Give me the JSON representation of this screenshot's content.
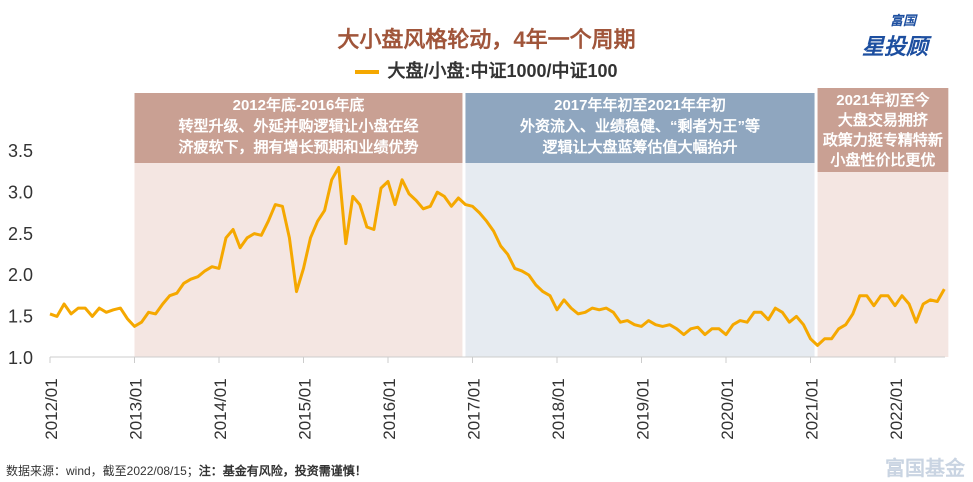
{
  "title": "大小盘风格轮动，4年一个周期",
  "logo": {
    "top": "富国",
    "bottom": "星投顾"
  },
  "watermark": "富国基金",
  "footer": {
    "source": "数据来源：wind，截至2022/08/15；",
    "note": "注：基金有风险，投资需谨慎！"
  },
  "colors": {
    "line": "#f5a800",
    "pink_band": "#c9a093",
    "blue_band": "#8fa6bf",
    "title": "#a0553a"
  },
  "chart_data": {
    "type": "line",
    "title": "大小盘风格轮动，4年一个周期",
    "ylim": [
      1.0,
      3.5
    ],
    "yticks": [
      "1.0",
      "1.5",
      "2.0",
      "2.5",
      "3.0",
      "3.5"
    ],
    "xticks": [
      "2012/01",
      "2013/01",
      "2014/01",
      "2015/01",
      "2016/01",
      "2017/01",
      "2018/01",
      "2019/01",
      "2020/01",
      "2021/01",
      "2022/01"
    ],
    "series": [
      {
        "name": "大盘/小盘:中证1000/中证100",
        "start": "2012/01",
        "frequency": "monthly",
        "values": [
          1.55,
          1.45,
          1.6,
          1.55,
          1.55,
          1.55,
          1.52,
          1.55,
          1.5,
          1.6,
          1.55,
          1.42,
          1.4,
          1.38,
          1.5,
          1.55,
          1.6,
          1.7,
          1.8,
          1.85,
          1.9,
          2.0,
          2.0,
          2.05,
          2.1,
          2.4,
          2.5,
          2.35,
          2.4,
          2.45,
          2.5,
          2.6,
          2.8,
          2.85,
          2.4,
          1.75,
          2.1,
          2.4,
          2.6,
          2.8,
          3.1,
          3.25,
          2.4,
          2.9,
          2.8,
          2.6,
          2.5,
          3.0,
          3.15,
          2.8,
          3.1,
          3.0,
          2.85,
          2.75,
          2.85,
          2.95,
          2.9,
          2.85,
          2.88,
          2.8,
          2.85,
          2.7,
          2.6,
          2.55,
          2.3,
          2.2,
          2.1,
          2.0,
          1.95,
          1.9,
          1.75,
          1.7,
          1.6,
          1.65,
          1.55,
          1.55,
          1.5,
          1.55,
          1.6,
          1.55,
          1.5,
          1.45,
          1.4,
          1.35,
          1.4,
          1.4,
          1.35,
          1.4,
          1.35,
          1.3,
          1.3,
          1.3,
          1.32,
          1.3,
          1.3,
          1.3,
          1.3,
          1.35,
          1.4,
          1.45,
          1.5,
          1.5,
          1.48,
          1.55,
          1.5,
          1.45,
          1.45,
          1.35,
          1.25,
          1.1,
          1.18,
          1.25,
          1.3,
          1.35,
          1.55,
          1.7,
          1.7,
          1.65,
          1.7,
          1.7,
          1.65,
          1.7,
          1.6,
          1.45,
          1.6,
          1.65,
          1.7,
          1.78
        ]
      }
    ],
    "annotations": [
      {
        "period": [
          "2013/01",
          "2016/11"
        ],
        "color": "pink",
        "lines": [
          "2012年底-2016年底",
          "转型升级、外延并购逻辑让小盘在经",
          "济疲软下，拥有增长预期和业绩优势"
        ]
      },
      {
        "period": [
          "2016/12",
          "2021/01"
        ],
        "color": "blue",
        "lines": [
          "2017年年初至2021年年初",
          "外资流入、业绩稳健、“剩者为王”等",
          "逻辑让大盘蓝筹估值大幅抬升"
        ]
      },
      {
        "period": [
          "2021/02",
          "2022/08"
        ],
        "color": "pink",
        "lines": [
          "2021年初至今",
          "大盘交易拥挤",
          "政策力挺专精特新",
          "小盘性价比更优"
        ]
      }
    ]
  }
}
